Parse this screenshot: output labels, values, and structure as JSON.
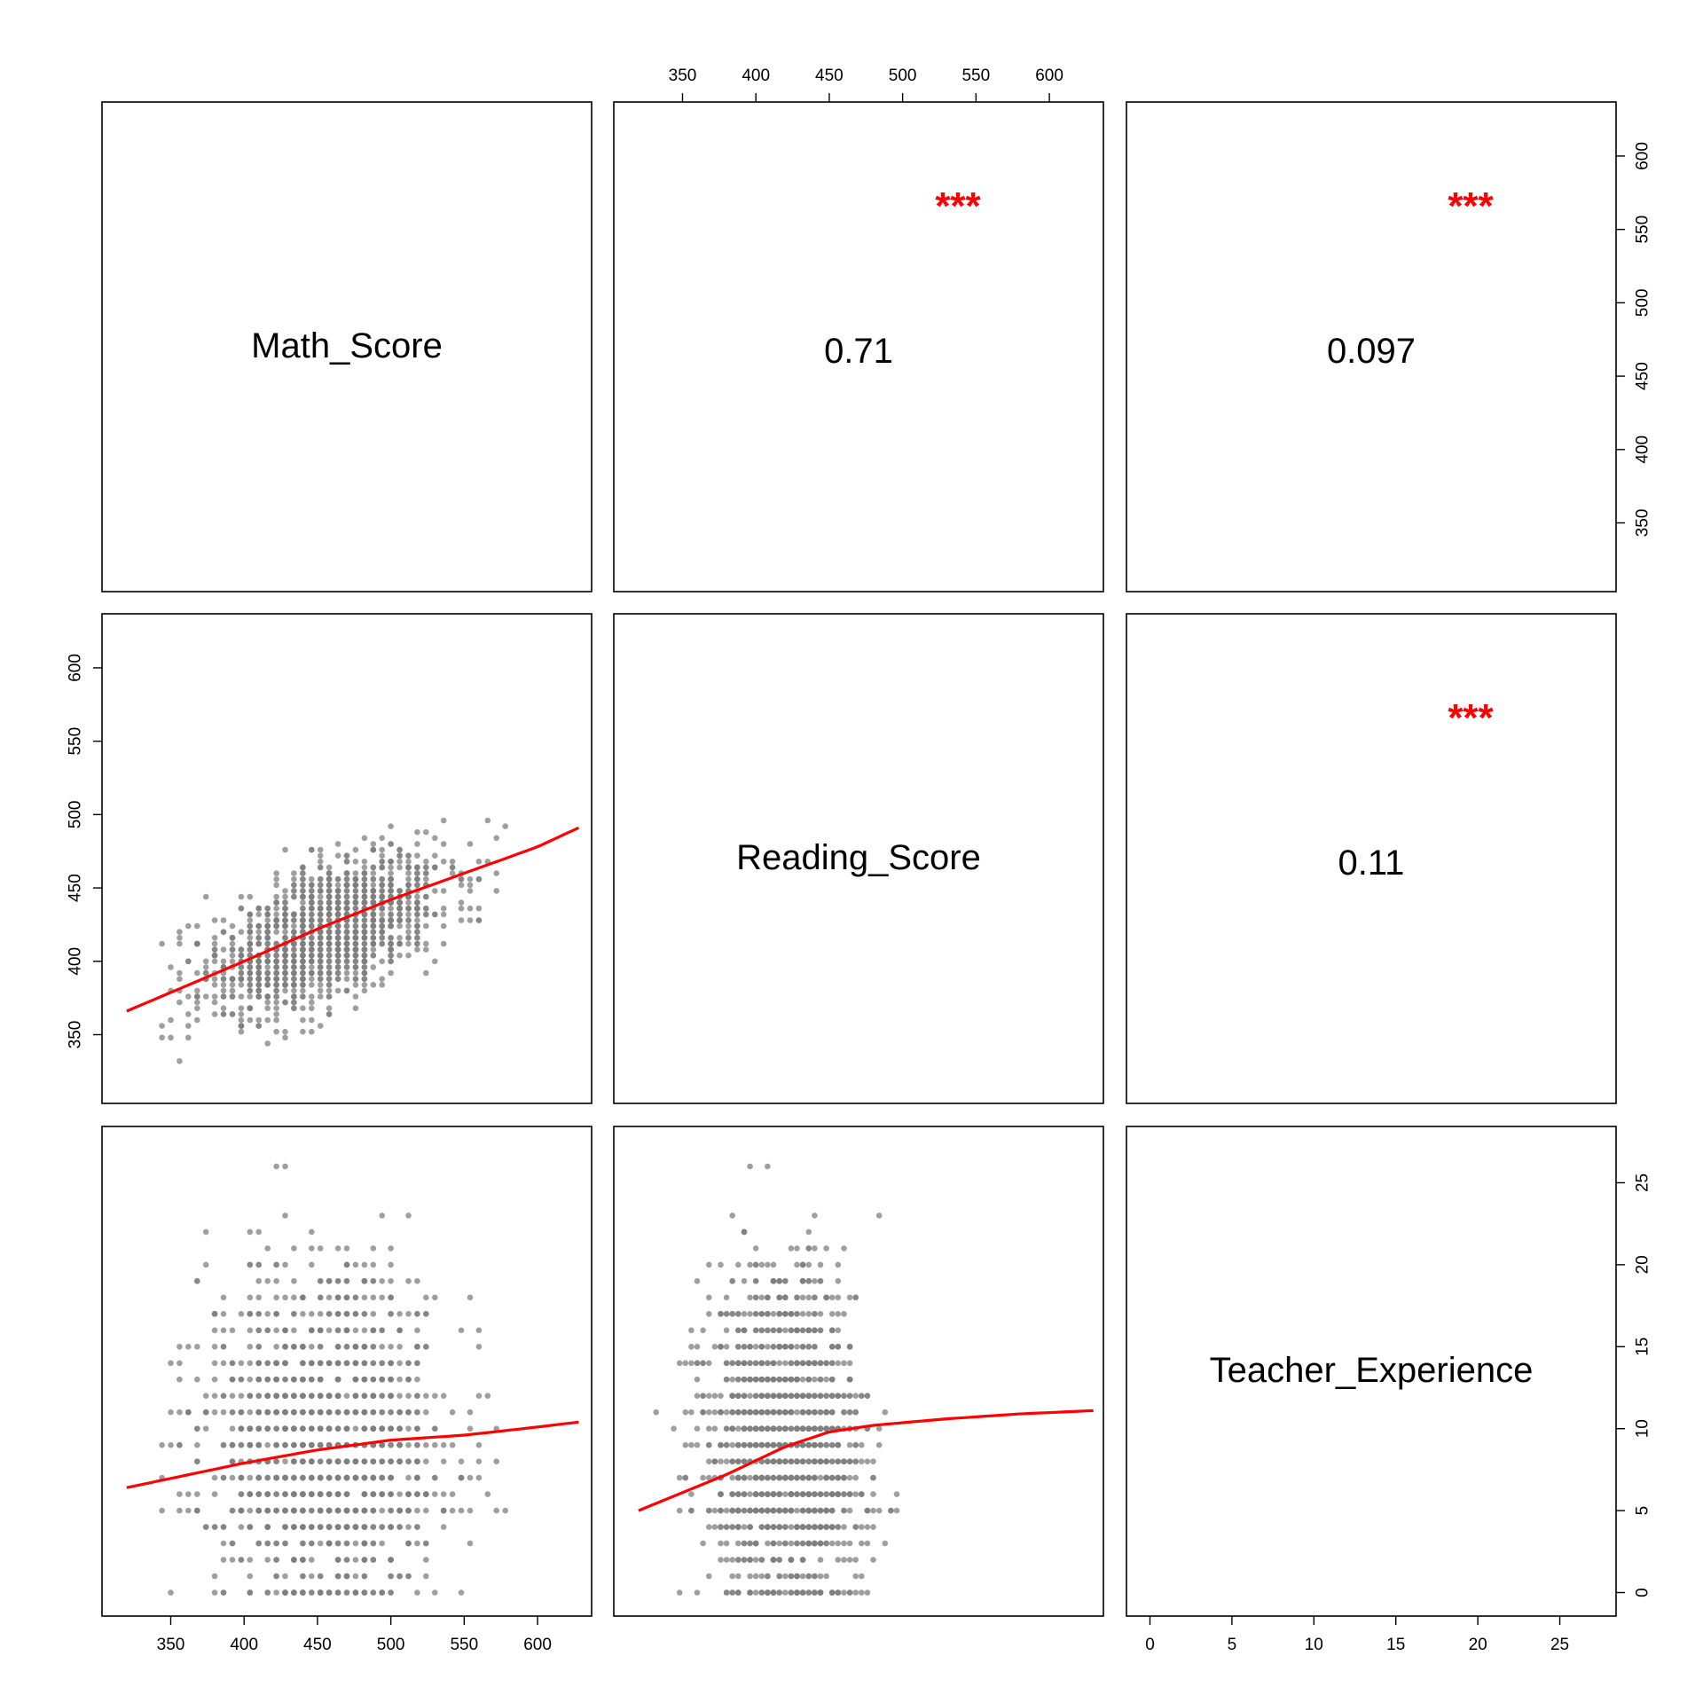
{
  "chart_data": {
    "type": "scatter",
    "variables": [
      "Math_Score",
      "Reading_Score",
      "Teacher_Experience"
    ],
    "ranges": {
      "Math_Score": [
        308,
        632
      ],
      "Reading_Score": [
        308,
        632
      ],
      "Teacher_Experience": [
        -1,
        28
      ]
    },
    "ticks": {
      "Math_Score": [
        350,
        400,
        450,
        500,
        550,
        600
      ],
      "Reading_Score": [
        350,
        400,
        450,
        500,
        550,
        600
      ],
      "Teacher_Experience": [
        0,
        5,
        10,
        15,
        20,
        25
      ]
    },
    "correlations": [
      {
        "row": 0,
        "col": 1,
        "value": "0.71",
        "stars": "***"
      },
      {
        "row": 0,
        "col": 2,
        "value": "0.097",
        "stars": "***"
      },
      {
        "row": 1,
        "col": 2,
        "value": "0.11",
        "stars": "***"
      }
    ],
    "fit_lines": [
      {
        "x_var": "Math_Score",
        "y_var": "Reading_Score",
        "x": [
          320,
          400,
          450,
          500,
          550,
          600,
          628
        ],
        "y": [
          366,
          400,
          422,
          442,
          460,
          478,
          491
        ]
      },
      {
        "x_var": "Math_Score",
        "y_var": "Teacher_Experience",
        "x": [
          320,
          400,
          450,
          500,
          550,
          600,
          628
        ],
        "y": [
          6.4,
          7.9,
          8.7,
          9.3,
          9.6,
          10.1,
          10.4
        ]
      },
      {
        "x_var": "Reading_Score",
        "y_var": "Teacher_Experience",
        "x": [
          320,
          380,
          420,
          450,
          480,
          530,
          580,
          630
        ],
        "y": [
          5.0,
          7.2,
          8.9,
          9.8,
          10.2,
          10.6,
          10.9,
          11.1
        ]
      }
    ],
    "point_color": "#7f7f7f",
    "fit_color": "#ff0000",
    "stars_color": "#ff0000",
    "grid": false
  }
}
